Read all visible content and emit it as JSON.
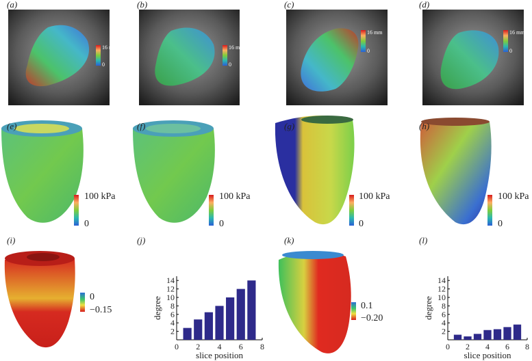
{
  "panels": [
    "(a)",
    "(b)",
    "(c)",
    "(d)",
    "(e)",
    "(f)",
    "(g)",
    "(h)",
    "(i)",
    "(j)",
    "(k)",
    "(l)"
  ],
  "colorbar_labels": [
    {
      "top": "16 mm",
      "bottom": "0"
    },
    {
      "top": "16 mm",
      "bottom": "0"
    },
    {
      "top": "16 mm",
      "bottom": "0"
    },
    {
      "top": "16 mm",
      "bottom": "0"
    },
    {
      "top": "100 kPa",
      "bottom": "0"
    },
    {
      "top": "100 kPa",
      "bottom": "0"
    },
    {
      "top": "100 kPa",
      "bottom": "0"
    },
    {
      "top": "100 kPa",
      "bottom": "0"
    },
    {
      "top": "0",
      "bottom": "−0.15"
    },
    {
      "top": "0.1",
      "bottom": "−0.20"
    }
  ],
  "chart_data": [
    {
      "type": "bar",
      "x": [
        1,
        2,
        3,
        4,
        5,
        6,
        7
      ],
      "values": [
        2.8,
        4.8,
        6.5,
        8,
        10,
        12,
        14
      ],
      "color": "#2e2a8a",
      "xlabel": "slice position",
      "ylabel": "degree",
      "xlim": [
        0,
        8
      ],
      "xticks": [
        0,
        2,
        4,
        6,
        8
      ],
      "ylim": [
        0,
        15
      ],
      "yticks": [
        2,
        4,
        6,
        8,
        10,
        12,
        14
      ]
    },
    {
      "type": "bar",
      "x": [
        1,
        2,
        3,
        4,
        5,
        6,
        7
      ],
      "values": [
        1.2,
        0.8,
        1.4,
        2.3,
        2.5,
        3,
        3.6
      ],
      "color": "#2e2a8a",
      "xlabel": "slice position",
      "ylabel": "degree",
      "xlim": [
        0,
        8
      ],
      "xticks": [
        0,
        2,
        4,
        6,
        8
      ],
      "ylim": [
        0,
        15
      ],
      "yticks": [
        2,
        4,
        6,
        8,
        10,
        12,
        14
      ]
    }
  ]
}
